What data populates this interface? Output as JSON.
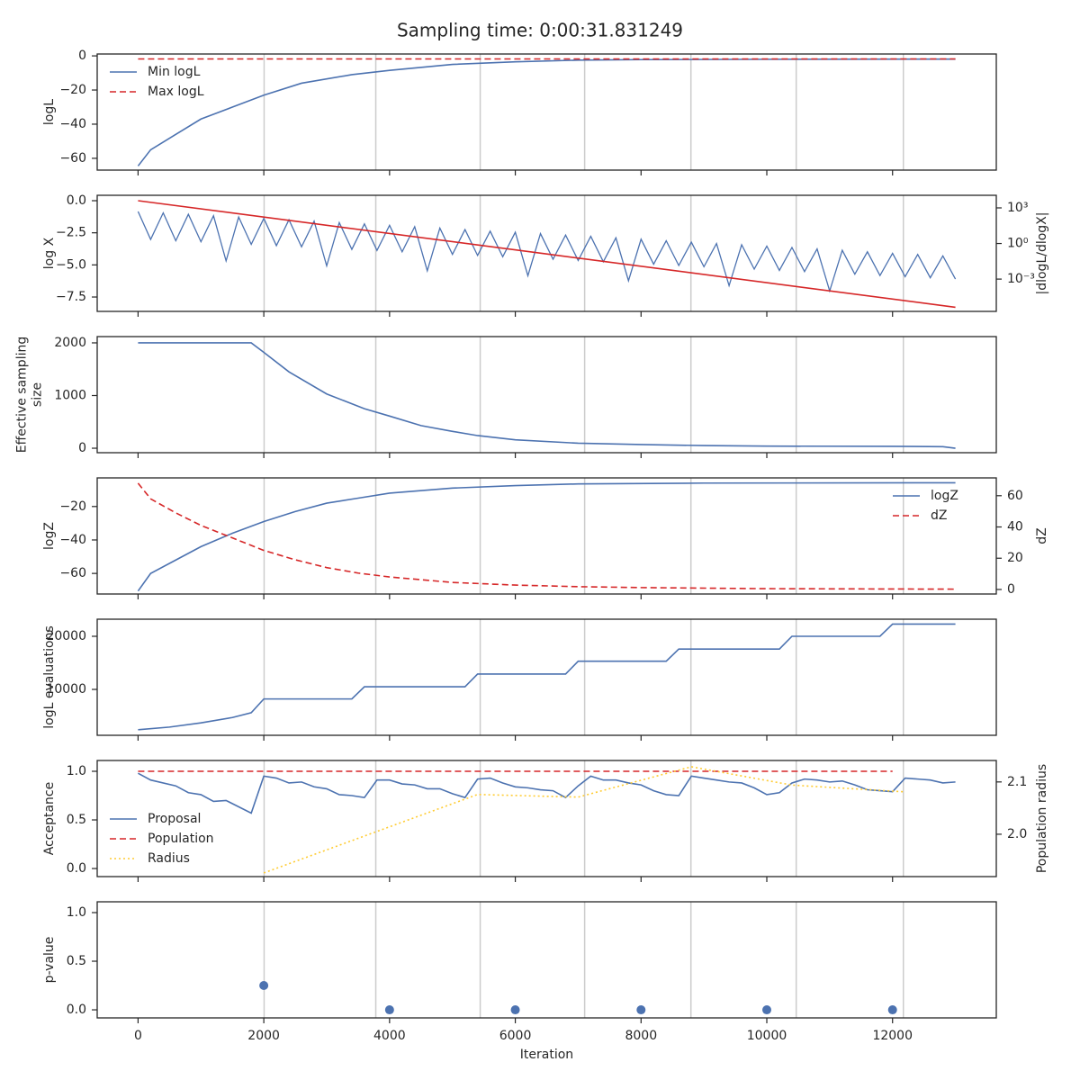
{
  "title": "Sampling time: 0:00:31.831249",
  "x_axis": {
    "xlim": [
      -650,
      13650
    ],
    "xticks": [
      0,
      2000,
      4000,
      6000,
      8000,
      10000,
      12000
    ],
    "vlines": [
      2005,
      3781,
      5442,
      7103,
      8793,
      10468,
      12172
    ]
  },
  "chart_data": [
    {
      "type": "line",
      "ylabel": "logL",
      "ylim": [
        -66.9,
        1.1
      ],
      "yticks": [
        {
          "value": -60,
          "label": "−60"
        },
        {
          "value": -40,
          "label": "−40"
        },
        {
          "value": -20,
          "label": "−20"
        },
        0
      ],
      "legend": "upper left",
      "series": [
        {
          "name": "Min logL",
          "color": "#4c72b0",
          "line_style": "solid",
          "x": [
            0,
            200,
            600,
            1000,
            1500,
            2000,
            2600,
            3400,
            4000,
            5000,
            6000,
            7000,
            8000,
            10000,
            13000
          ],
          "values": [
            -64.5,
            -55,
            -46,
            -37,
            -30,
            -23,
            -16,
            -11,
            -8.5,
            -5,
            -3.5,
            -2.5,
            -2.2,
            -2,
            -1.9
          ]
        },
        {
          "name": "Max logL",
          "color": "#d62728",
          "line_style": "dashed",
          "x": [
            0,
            13000
          ],
          "values": [
            -1.8,
            -1.8
          ]
        }
      ]
    },
    {
      "type": "line",
      "ylabel": "log X",
      "y2label": "|dlogL/dlogX|",
      "ylim": [
        -8.62,
        0.42
      ],
      "yticks": [
        {
          "value": -7.5,
          "label": "−7.5"
        },
        {
          "value": -5,
          "label": "−5.0"
        },
        {
          "value": -2.5,
          "label": "−2.5"
        },
        {
          "value": 0,
          "label": "0.0"
        }
      ],
      "y2scale": "log",
      "y2lim": [
        1.9e-06,
        11500
      ],
      "y2ticks": [
        {
          "value": 1000,
          "label": "10³"
        },
        {
          "value": 1,
          "label": "10⁰"
        },
        {
          "value": 0.001,
          "label": "10⁻³"
        }
      ],
      "series": [
        {
          "color": "#4c72b0",
          "line_style": "solid",
          "axis": "y2",
          "x": [
            0,
            200,
            400,
            600,
            800,
            1000,
            1200,
            1400,
            1600,
            1800,
            2000,
            2200,
            2400,
            2600,
            2800,
            3000,
            3200,
            3400,
            3600,
            3800,
            4000,
            4200,
            4400,
            4600,
            4800,
            5000,
            5200,
            5400,
            5600,
            5800,
            6000,
            6200,
            6400,
            6600,
            6800,
            7000,
            7200,
            7400,
            7600,
            7800,
            8000,
            8200,
            8400,
            8600,
            8800,
            9000,
            9200,
            9400,
            9600,
            9800,
            10000,
            10200,
            10400,
            10600,
            10800,
            11000,
            11200,
            11400,
            11600,
            11800,
            12000,
            12200,
            12400,
            12600,
            12800,
            13000
          ],
          "values": [
            500,
            2.2,
            380,
            1.7,
            290,
            1.4,
            220,
            0.034,
            170,
            0.85,
            130,
            0.66,
            100,
            0.52,
            76,
            0.013,
            58,
            0.32,
            45,
            0.26,
            34,
            0.2,
            26,
            0.005,
            20,
            0.12,
            15,
            0.098,
            11,
            0.076,
            8.9,
            0.0019,
            6.8,
            0.047,
            5.1,
            0.037,
            4,
            0.029,
            3,
            0.00072,
            2.3,
            0.018,
            1.7,
            0.014,
            1.3,
            0.011,
            1,
            0.00028,
            0.78,
            0.0069,
            0.6,
            0.0054,
            0.46,
            0.0043,
            0.35,
            0.0001,
            0.27,
            0.0026,
            0.2,
            0.002,
            0.15,
            0.0016,
            0.12,
            0.0013,
            0.091,
            0.001
          ]
        },
        {
          "color": "#d62728",
          "line_style": "solid",
          "x": [
            0,
            6500,
            13000
          ],
          "values": [
            0,
            -4.15,
            -8.3
          ]
        }
      ]
    },
    {
      "type": "line",
      "ylabel": "Effective sampling\nsize",
      "ylim": [
        -85,
        2119
      ],
      "yticks": [
        0,
        1000,
        2000
      ],
      "series": [
        {
          "color": "#4c72b0",
          "line_style": "solid",
          "x": [
            0,
            1800,
            2000,
            2400,
            3000,
            3600,
            4000,
            4500,
            5000,
            5400,
            6000,
            7000,
            8000,
            9000,
            10000,
            12000,
            12800,
            13000
          ],
          "values": [
            2000,
            2000,
            1820,
            1450,
            1030,
            750,
            610,
            430,
            320,
            240,
            160,
            95,
            70,
            50,
            40,
            35,
            30,
            0
          ]
        }
      ]
    },
    {
      "type": "line",
      "ylabel": "logZ",
      "y2label": "dZ",
      "ylim": [
        -72.3,
        -2.9
      ],
      "yticks": [
        {
          "value": -60,
          "label": "−60"
        },
        {
          "value": -40,
          "label": "−40"
        },
        {
          "value": -20,
          "label": "−20"
        }
      ],
      "y2lim": [
        -2.9,
        71.4
      ],
      "y2ticks": [
        0,
        20,
        40,
        60
      ],
      "legend": "upper right",
      "series": [
        {
          "name": "logZ",
          "color": "#4c72b0",
          "line_style": "solid",
          "x": [
            0,
            200,
            600,
            1000,
            1500,
            2000,
            2500,
            3000,
            3500,
            4000,
            5000,
            6000,
            7000,
            9000,
            13000
          ],
          "values": [
            -70.5,
            -60,
            -52,
            -44,
            -36,
            -29,
            -23,
            -18,
            -15,
            -12,
            -9,
            -7.5,
            -6.5,
            -6,
            -5.8
          ]
        },
        {
          "name": "dZ",
          "color": "#d62728",
          "line_style": "dashed",
          "axis": "y2",
          "x": [
            0,
            200,
            600,
            1000,
            1500,
            2000,
            2500,
            3000,
            3500,
            4000,
            5000,
            6000,
            7000,
            8000,
            10000,
            13000
          ],
          "values": [
            68,
            58,
            49,
            41,
            33,
            25,
            19,
            14,
            10.5,
            8,
            4.5,
            2.8,
            1.8,
            1.2,
            0.5,
            0.2
          ]
        }
      ]
    },
    {
      "type": "line",
      "ylabel": "logL evaluations",
      "ylim": [
        1356,
        23220
      ],
      "yticks": [
        10000,
        20000
      ],
      "series": [
        {
          "color": "#4c72b0",
          "line_style": "solid",
          "x": [
            0,
            500,
            1000,
            1500,
            1800,
            2000,
            3400,
            3600,
            5200,
            5400,
            6800,
            7000,
            8400,
            8600,
            10200,
            10400,
            11800,
            12000,
            13000
          ],
          "values": [
            2400,
            2900,
            3700,
            4700,
            5600,
            8200,
            8200,
            10500,
            10500,
            12900,
            12900,
            15300,
            15300,
            17600,
            17600,
            20000,
            20000,
            22300,
            22300
          ]
        }
      ]
    },
    {
      "type": "line",
      "ylabel": "Acceptance",
      "y2label": "Population radius",
      "ylim": [
        -0.083,
        1.111
      ],
      "yticks": [
        {
          "value": 0,
          "label": "0.0"
        },
        0.5,
        {
          "value": 1,
          "label": "1.0"
        }
      ],
      "y2lim": [
        1.919,
        2.141
      ],
      "y2ticks": [
        {
          "value": 2,
          "label": "2.0"
        },
        2.1
      ],
      "legend": "lower left",
      "series": [
        {
          "name": "Proposal",
          "color": "#4c72b0",
          "line_style": "solid",
          "x": [
            0,
            200,
            600,
            800,
            1000,
            1200,
            1400,
            1800,
            2000,
            2200,
            2400,
            2600,
            2800,
            3000,
            3200,
            3400,
            3600,
            3800,
            4000,
            4200,
            4400,
            4600,
            4800,
            5000,
            5200,
            5400,
            5600,
            5800,
            6000,
            6200,
            6400,
            6600,
            6800,
            7000,
            7200,
            7400,
            7600,
            7800,
            8000,
            8200,
            8400,
            8600,
            8800,
            9000,
            9200,
            9400,
            9600,
            9800,
            10000,
            10200,
            10400,
            10600,
            10800,
            11000,
            11200,
            11400,
            11600,
            11800,
            12000,
            12200,
            12400,
            12600,
            12800,
            13000
          ],
          "values": [
            0.98,
            0.91,
            0.85,
            0.78,
            0.76,
            0.69,
            0.7,
            0.57,
            0.95,
            0.93,
            0.88,
            0.89,
            0.84,
            0.82,
            0.76,
            0.75,
            0.73,
            0.91,
            0.91,
            0.87,
            0.86,
            0.82,
            0.82,
            0.77,
            0.73,
            0.92,
            0.93,
            0.88,
            0.84,
            0.83,
            0.81,
            0.8,
            0.73,
            0.85,
            0.95,
            0.91,
            0.91,
            0.88,
            0.86,
            0.8,
            0.76,
            0.75,
            0.95,
            0.93,
            0.91,
            0.89,
            0.88,
            0.83,
            0.76,
            0.78,
            0.88,
            0.92,
            0.91,
            0.89,
            0.9,
            0.86,
            0.81,
            0.8,
            0.79,
            0.93,
            0.92,
            0.91,
            0.88,
            0.89
          ]
        },
        {
          "name": "Population",
          "color": "#d62728",
          "line_style": "dashed",
          "x": [
            0,
            12000
          ],
          "values": [
            1,
            1
          ]
        },
        {
          "name": "Radius",
          "color": "#ffcc33",
          "line_style": "dotted",
          "axis": "y2",
          "x": [
            2000,
            5400,
            7000,
            8800,
            10400,
            12200
          ],
          "values": [
            1.926,
            2.076,
            2.071,
            2.129,
            2.094,
            2.081
          ]
        }
      ]
    },
    {
      "type": "scatter",
      "ylabel": "p-value",
      "xlabel": "Iteration",
      "ylim": [
        -0.083,
        1.111
      ],
      "yticks": [
        {
          "value": 0,
          "label": "0.0"
        },
        0.5,
        {
          "value": 1,
          "label": "1.0"
        }
      ],
      "series": [
        {
          "color": "#4c72b0",
          "x": [
            2000,
            4000,
            6000,
            8000,
            10000,
            12000
          ],
          "values": [
            0.25,
            0,
            0,
            0,
            0,
            0
          ]
        }
      ]
    }
  ]
}
